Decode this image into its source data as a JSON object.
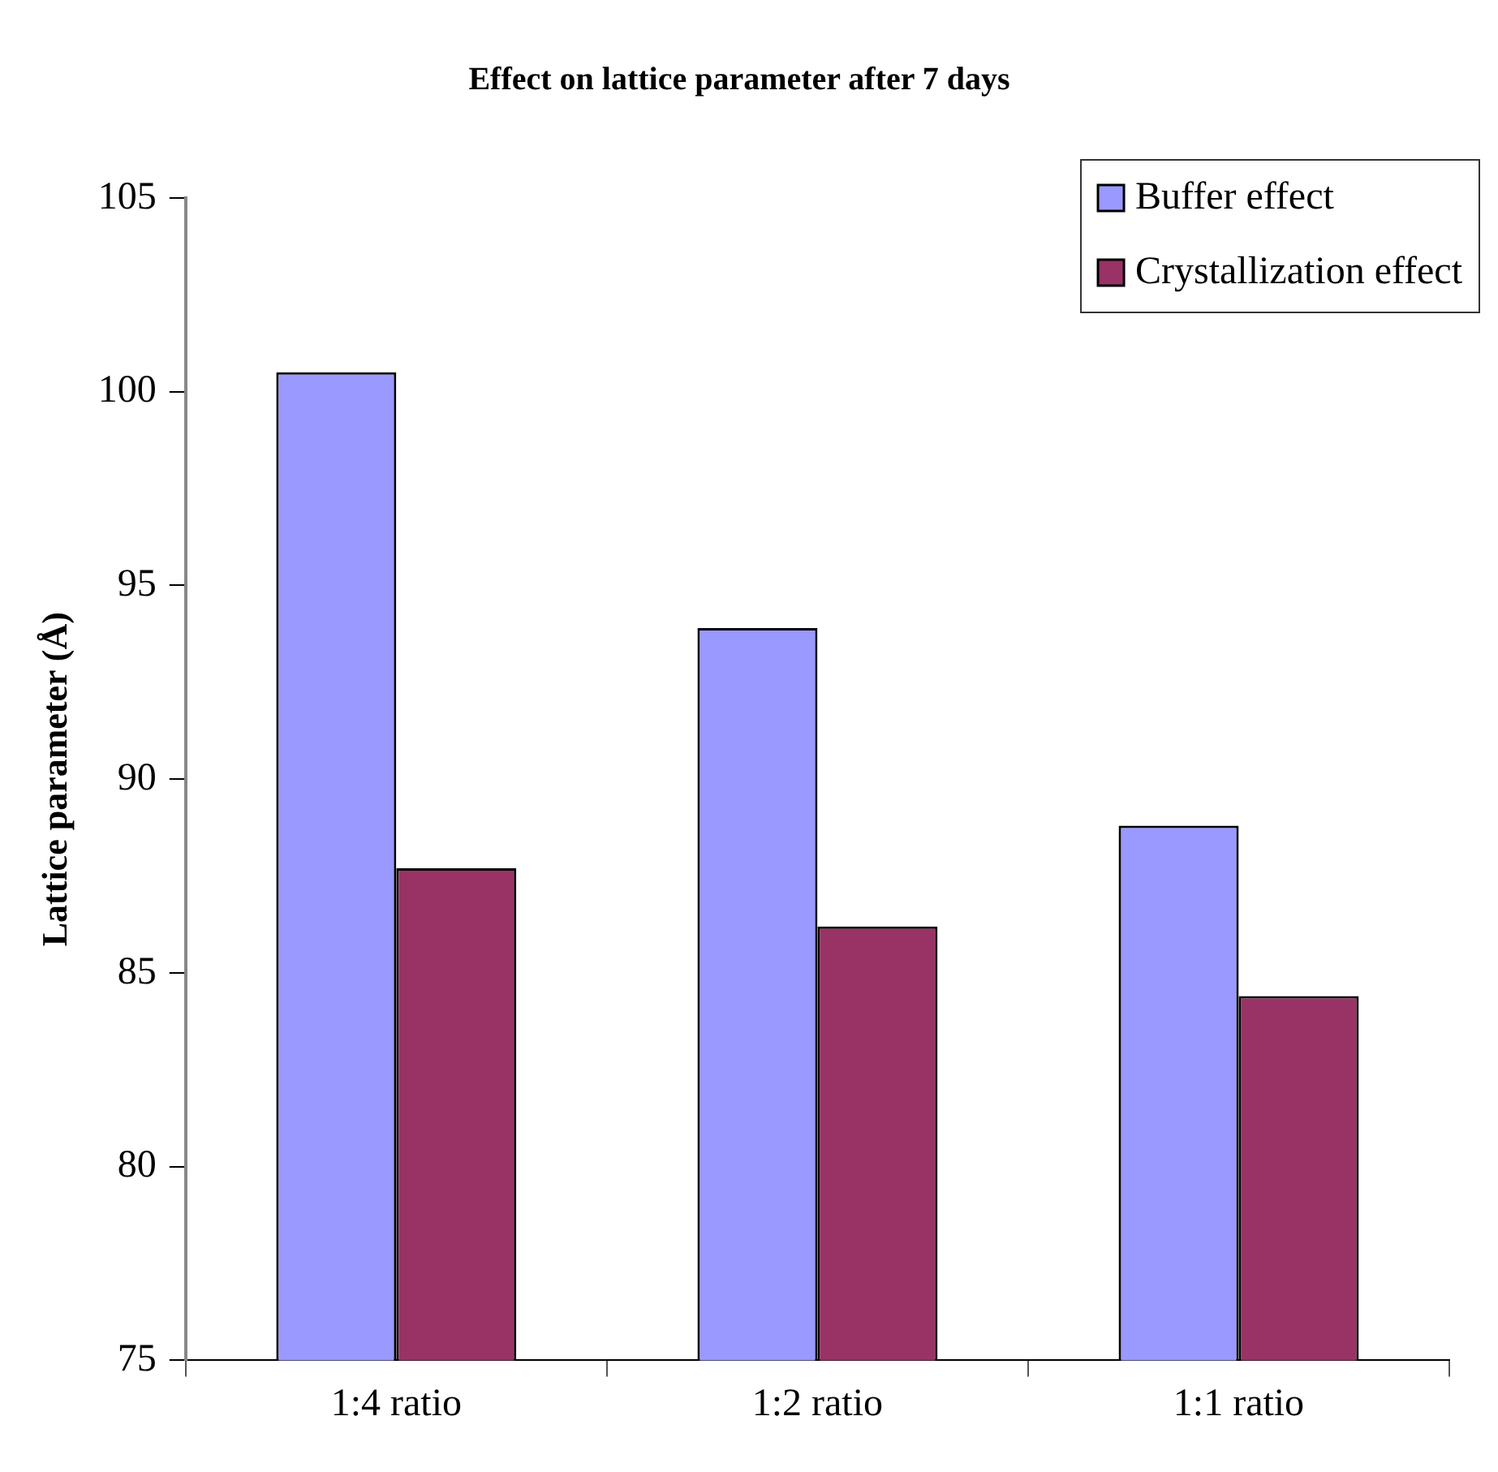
{
  "chart_data": {
    "type": "bar",
    "title": "Effect on lattice parameter after 7 days",
    "ylabel": "Lattice parameter (Å)",
    "categories": [
      "1:4 ratio",
      "1:2 ratio",
      "1:1 ratio"
    ],
    "series": [
      {
        "name": "Buffer effect",
        "color": "#9999ff",
        "values": [
          100.5,
          93.9,
          88.8
        ]
      },
      {
        "name": "Crystallization effect",
        "color": "#993366",
        "values": [
          87.7,
          86.2,
          84.4
        ]
      }
    ],
    "ylim": [
      75,
      105
    ],
    "yticks": [
      75,
      80,
      85,
      90,
      95,
      100,
      105
    ],
    "grid": false,
    "legend": "top right"
  }
}
